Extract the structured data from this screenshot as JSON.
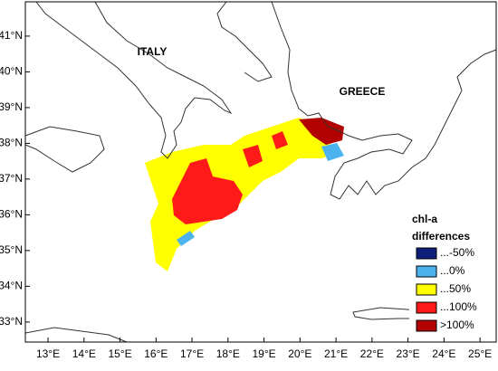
{
  "map": {
    "xlim": [
      12.37,
      25.45
    ],
    "ylim": [
      32.44,
      41.96
    ],
    "lon_ticks": [
      {
        "value": 13,
        "label": "13°E"
      },
      {
        "value": 14,
        "label": "14°E"
      },
      {
        "value": 15,
        "label": "15°E"
      },
      {
        "value": 16,
        "label": "16°E"
      },
      {
        "value": 17,
        "label": "17°E"
      },
      {
        "value": 18,
        "label": "18°E"
      },
      {
        "value": 19,
        "label": "19°E"
      },
      {
        "value": 20,
        "label": "20°E"
      },
      {
        "value": 21,
        "label": "21°E"
      },
      {
        "value": 22,
        "label": "22°E"
      },
      {
        "value": 23,
        "label": "23°E"
      },
      {
        "value": 24,
        "label": "24°E"
      },
      {
        "value": 25,
        "label": "25°E"
      }
    ],
    "lat_ticks": [
      {
        "value": 33,
        "label": "33°N"
      },
      {
        "value": 34,
        "label": "34°N"
      },
      {
        "value": 35,
        "label": "35°N"
      },
      {
        "value": 36,
        "label": "36°N"
      },
      {
        "value": 37,
        "label": "37°N"
      },
      {
        "value": 38,
        "label": "38°N"
      },
      {
        "value": 39,
        "label": "39°N"
      },
      {
        "value": 40,
        "label": "40°N"
      },
      {
        "value": 41,
        "label": "41°N"
      }
    ],
    "places": [
      "ITALY",
      "GREECE"
    ],
    "legend": {
      "title": [
        "chl-a",
        "differences"
      ],
      "items": [
        {
          "label": "...-50%",
          "color": "#0d1f7a"
        },
        {
          "label": "...0%",
          "color": "#4db3ee"
        },
        {
          "label": "...50%",
          "color": "#ffff00"
        },
        {
          "label": "...100%",
          "color": "#ff1a1a"
        },
        {
          "label": ">100%",
          "color": "#b30000"
        }
      ]
    }
  }
}
